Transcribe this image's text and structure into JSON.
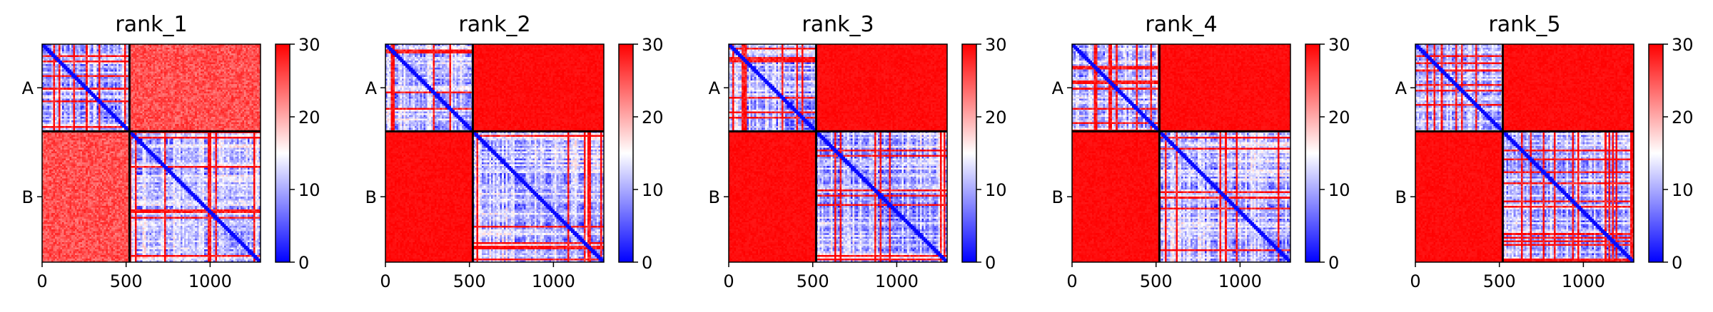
{
  "figure": {
    "colorbar_colors": [
      "#0000ff",
      "#ffffff",
      "#ff0000"
    ]
  },
  "chart_data": [
    {
      "type": "heatmap",
      "title": "rank_1",
      "x_ticks": [
        0,
        500,
        1000
      ],
      "xlim": [
        0,
        1300
      ],
      "x_tick_labels": [
        "0",
        "500",
        "1000"
      ],
      "chain_labels": [
        "A",
        "B"
      ],
      "chain_boundary": 520,
      "colorbar": {
        "range": [
          0,
          30
        ],
        "ticks": [
          0,
          10,
          20,
          30
        ],
        "tick_labels": [
          "0",
          "10",
          "20",
          "30"
        ]
      },
      "offdiag_value": 28
    },
    {
      "type": "heatmap",
      "title": "rank_2",
      "x_ticks": [
        0,
        500,
        1000
      ],
      "xlim": [
        0,
        1300
      ],
      "x_tick_labels": [
        "0",
        "500",
        "1000"
      ],
      "chain_labels": [
        "A",
        "B"
      ],
      "chain_boundary": 520,
      "colorbar": {
        "range": [
          0,
          30
        ],
        "ticks": [
          0,
          10,
          20,
          30
        ],
        "tick_labels": [
          "0",
          "10",
          "20",
          "30"
        ]
      },
      "offdiag_value": 30
    },
    {
      "type": "heatmap",
      "title": "rank_3",
      "x_ticks": [
        0,
        500,
        1000
      ],
      "xlim": [
        0,
        1300
      ],
      "x_tick_labels": [
        "0",
        "500",
        "1000"
      ],
      "chain_labels": [
        "A",
        "B"
      ],
      "chain_boundary": 520,
      "colorbar": {
        "range": [
          0,
          30
        ],
        "ticks": [
          0,
          10,
          20,
          30
        ],
        "tick_labels": [
          "0",
          "10",
          "20",
          "30"
        ]
      },
      "offdiag_value": 30
    },
    {
      "type": "heatmap",
      "title": "rank_4",
      "x_ticks": [
        0,
        500,
        1000
      ],
      "xlim": [
        0,
        1300
      ],
      "x_tick_labels": [
        "0",
        "500",
        "1000"
      ],
      "chain_labels": [
        "A",
        "B"
      ],
      "chain_boundary": 520,
      "colorbar": {
        "range": [
          0,
          30
        ],
        "ticks": [
          0,
          10,
          20,
          30
        ],
        "tick_labels": [
          "0",
          "10",
          "20",
          "30"
        ]
      },
      "offdiag_value": 30
    },
    {
      "type": "heatmap",
      "title": "rank_5",
      "x_ticks": [
        0,
        500,
        1000
      ],
      "xlim": [
        0,
        1300
      ],
      "x_tick_labels": [
        "0",
        "500",
        "1000"
      ],
      "chain_labels": [
        "A",
        "B"
      ],
      "chain_boundary": 520,
      "colorbar": {
        "range": [
          0,
          30
        ],
        "ticks": [
          0,
          10,
          20,
          30
        ],
        "tick_labels": [
          "0",
          "10",
          "20",
          "30"
        ]
      },
      "offdiag_value": 30
    }
  ]
}
